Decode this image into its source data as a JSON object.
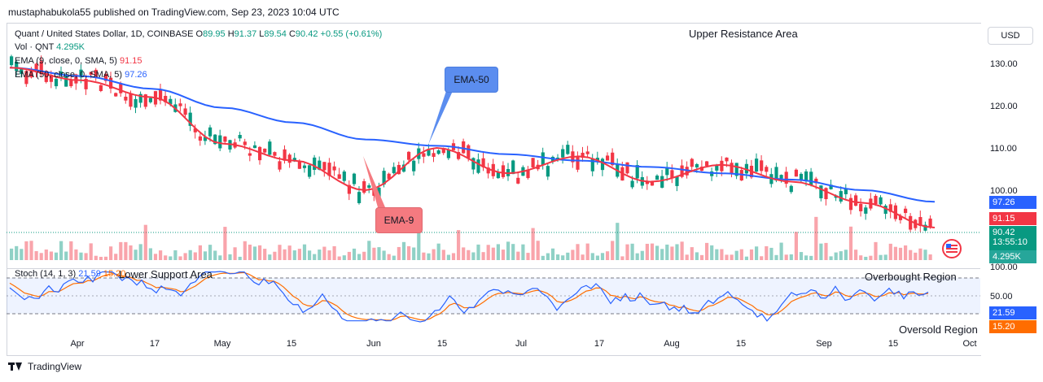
{
  "header": {
    "published": "mustaphabukola55 published on TradingView.com, Sep 23, 2023 10:04 UTC"
  },
  "legend": {
    "symbol": "Quant / United States Dollar, 1D, COINBASE",
    "o_label": "O",
    "o_value": "89.95",
    "h_label": "H",
    "h_value": "91.37",
    "l_label": "L",
    "l_value": "89.54",
    "c_label": "C",
    "c_value": "90.42",
    "change": "+0.55 (+0.61%)",
    "vol_label": "Vol · QNT",
    "vol_value": "4.295K",
    "ema9_label": "EMA (9, close, 0, SMA, 5)",
    "ema9_value": "91.15",
    "ema50_label": "EMA (50, close, 0, SMA, 5)",
    "ema50_value": "97.26",
    "stoch_label": "Stoch (14, 1, 3)",
    "stoch_k": "21.59",
    "stoch_d": "15.20"
  },
  "annotations": {
    "upper_resistance": "Upper Resistance Area",
    "lower_support": "Lower Support Area",
    "overbought": "Overbought Region",
    "oversold": "Oversold Region",
    "ema50_callout": "EMA-50",
    "ema9_callout": "EMA-9"
  },
  "price_axis": {
    "currency": "USD",
    "ticks": [
      "130.00",
      "120.00",
      "110.00",
      "100.00"
    ],
    "ema50_tag": "97.26",
    "ema9_tag": "91.15",
    "price_tag": "90.42",
    "countdown": "13:55:10",
    "volume_tag": "4.295K"
  },
  "stoch_axis": {
    "ticks": [
      "100.00",
      "50.00"
    ],
    "k_tag": "21.59",
    "d_tag": "15.20"
  },
  "time_axis": [
    "Apr",
    "17",
    "May",
    "15",
    "Jun",
    "15",
    "Jul",
    "17",
    "Aug",
    "15",
    "Sep",
    "15",
    "Oct"
  ],
  "footer": {
    "brand": "TradingView"
  },
  "colors": {
    "up": "#089981",
    "down": "#f23645",
    "ema9": "#f23645",
    "ema50": "#2962ff",
    "stoch_k": "#2962ff",
    "stoch_d": "#ff6d00",
    "ema50_callout": "#5b8def",
    "ema9_callout": "#f57a80"
  },
  "chart_data": {
    "type": "line",
    "title": "Quant / United States Dollar, 1D, COINBASE",
    "ylim": [
      92,
      135
    ],
    "series": [
      {
        "name": "EMA (9, close, 0, SMA, 5)",
        "x": [
          "Mar 20",
          "Apr 1",
          "Apr 17",
          "May 1",
          "May 15",
          "Jun 1",
          "Jun 15",
          "Jul 1",
          "Jul 17",
          "Aug 1",
          "Aug 15",
          "Sep 1",
          "Sep 15",
          "Sep 23"
        ],
        "values": [
          129,
          126,
          122,
          111,
          107,
          100,
          110,
          104,
          108,
          102,
          106,
          102,
          97,
          91.15
        ]
      },
      {
        "name": "EMA (50, close, 0, SMA, 5)",
        "x": [
          "Mar 20",
          "Apr 1",
          "Apr 17",
          "May 1",
          "May 15",
          "Jun 1",
          "Jun 15",
          "Jul 1",
          "Jul 17",
          "Aug 1",
          "Aug 15",
          "Sep 1",
          "Sep 15",
          "Sep 23"
        ],
        "values": [
          129,
          127,
          124,
          119.5,
          116,
          112,
          110.5,
          108.5,
          107,
          105.5,
          104,
          102.5,
          100,
          97.26
        ]
      }
    ]
  }
}
